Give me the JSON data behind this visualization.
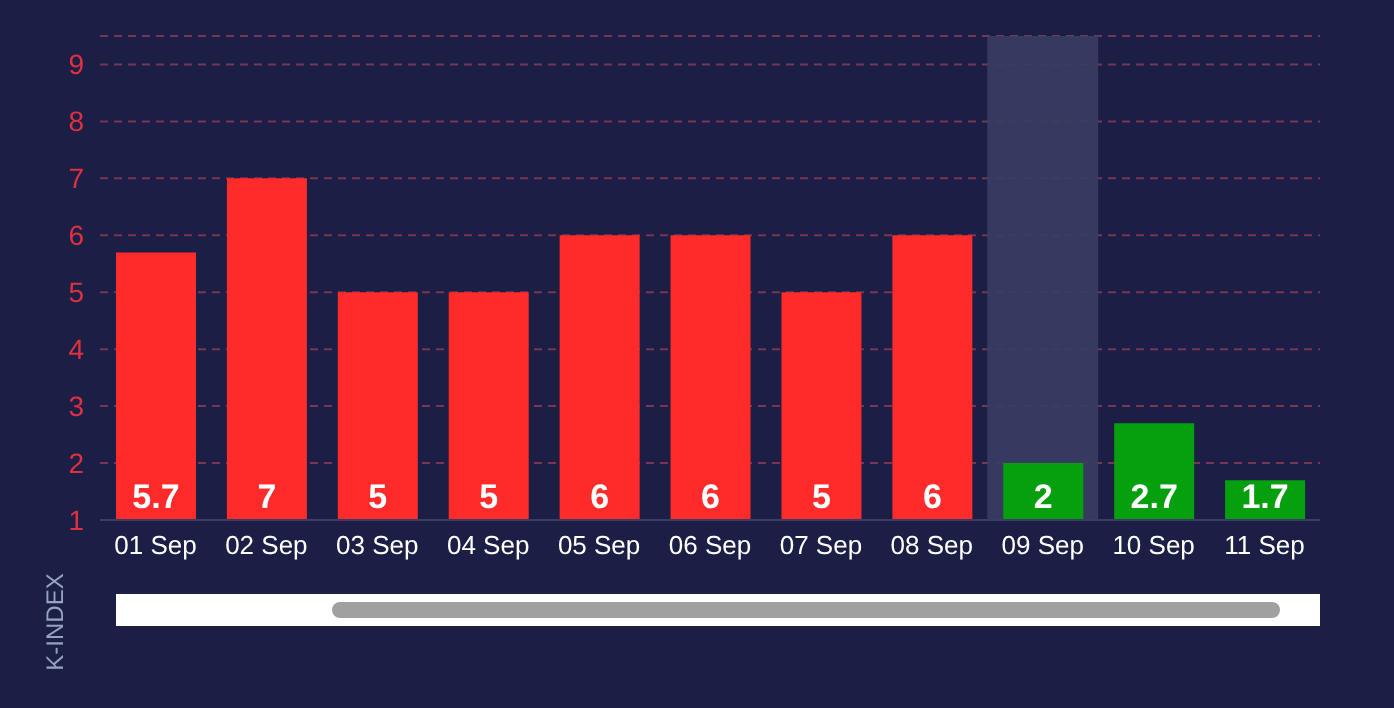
{
  "chart_data": {
    "type": "bar",
    "ylabel": "K-INDEX",
    "categories": [
      "01 Sep",
      "02 Sep",
      "03 Sep",
      "04 Sep",
      "05 Sep",
      "06 Sep",
      "07 Sep",
      "08 Sep",
      "09 Sep",
      "10 Sep",
      "11 Sep"
    ],
    "values": [
      5.7,
      7,
      5,
      5,
      6,
      6,
      5,
      6,
      2,
      2.7,
      1.7
    ],
    "colors": [
      "#ff2a2a",
      "#ff2a2a",
      "#ff2a2a",
      "#ff2a2a",
      "#ff2a2a",
      "#ff2a2a",
      "#ff2a2a",
      "#ff2a2a",
      "#06a00f",
      "#06a00f",
      "#06a00f"
    ],
    "ylim": [
      1,
      9.5
    ],
    "yticks": [
      1,
      2,
      3,
      4,
      5,
      6,
      7,
      8,
      9
    ],
    "grid": "y",
    "legend": false,
    "data_labels": true,
    "bands": [
      {
        "axis": "x",
        "from": "09 Sep",
        "to": "09 Sep",
        "color": "#3a3d63"
      }
    ]
  }
}
